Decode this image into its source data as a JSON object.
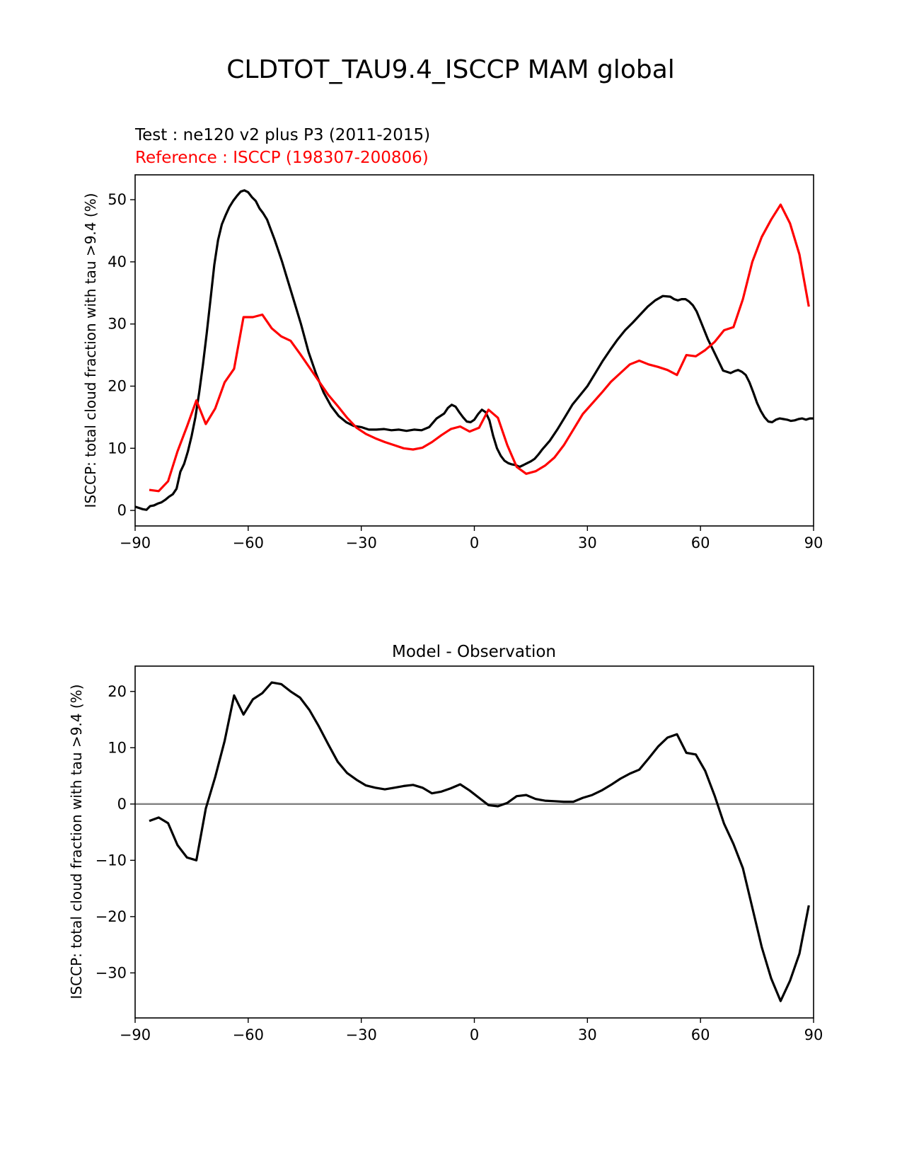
{
  "figure": {
    "suptitle": "CLDTOT_TAU9.4_ISCCP MAM global"
  },
  "colors": {
    "test": "#000000",
    "reference": "#ff0000",
    "zero_line": "#808080",
    "axes": "#000000"
  },
  "chart_data": [
    {
      "type": "line",
      "test_label": "Test : ne120 v2 plus P3 (2011-2015)",
      "reference_label": "Reference : ISCCP (198307-200806)",
      "xlabel": "",
      "ylabel": "ISCCP: total cloud fraction with tau >9.4 (%)",
      "xlim": [
        -90,
        90
      ],
      "ylim": [
        -2.5,
        54
      ],
      "xticks": [
        -90,
        -60,
        -30,
        0,
        30,
        60,
        90
      ],
      "xtick_labels": [
        "−90",
        "−60",
        "−30",
        "0",
        "30",
        "60",
        "90"
      ],
      "yticks": [
        0,
        10,
        20,
        30,
        40,
        50
      ],
      "ytick_labels": [
        "0",
        "10",
        "20",
        "30",
        "40",
        "50"
      ],
      "series": [
        {
          "name": "Test : ne120 v2 plus P3 (2011-2015)",
          "color": "#000000",
          "x": [
            -90,
            -89,
            -88,
            -87,
            -86,
            -85,
            -84,
            -83,
            -82,
            -81,
            -80,
            -79,
            -78,
            -77,
            -76,
            -75,
            -74,
            -73,
            -72,
            -71,
            -70,
            -69,
            -68,
            -67,
            -66,
            -65,
            -64,
            -63,
            -62,
            -61,
            -60,
            -59,
            -58,
            -57,
            -56,
            -55,
            -54,
            -53,
            -52,
            -51,
            -50,
            -48,
            -46,
            -44,
            -42,
            -40,
            -38,
            -36,
            -34,
            -32,
            -30,
            -28,
            -26,
            -24,
            -22,
            -20,
            -18,
            -16,
            -14,
            -12,
            -10,
            -8,
            -7,
            -6,
            -5,
            -4,
            -3,
            -2,
            -1,
            0,
            1,
            2,
            3,
            4,
            5,
            6,
            7,
            8,
            9,
            10,
            11,
            12,
            13,
            14,
            15,
            16,
            17,
            18,
            19,
            20,
            22,
            24,
            26,
            28,
            30,
            32,
            34,
            36,
            38,
            40,
            42,
            44,
            46,
            48,
            50,
            52,
            53,
            54,
            55,
            56,
            57,
            58,
            59,
            60,
            62,
            64,
            66,
            68,
            69,
            70,
            71,
            72,
            73,
            74,
            75,
            76,
            77,
            78,
            79,
            80,
            81,
            82,
            83,
            84,
            85,
            86,
            87,
            88,
            89,
            90
          ],
          "y": [
            0.6,
            0.4,
            0.2,
            0.1,
            0.7,
            0.8,
            1.1,
            1.3,
            1.7,
            2.2,
            2.6,
            3.5,
            6.2,
            7.5,
            9.5,
            12.0,
            15.0,
            19.0,
            23.5,
            28.5,
            34.0,
            39.5,
            43.5,
            46.0,
            47.5,
            48.8,
            49.8,
            50.6,
            51.3,
            51.5,
            51.2,
            50.4,
            49.8,
            48.6,
            47.8,
            46.8,
            45.2,
            43.6,
            41.8,
            40.0,
            38.0,
            34.0,
            30.0,
            25.5,
            22.0,
            19.0,
            16.8,
            15.2,
            14.2,
            13.6,
            13.4,
            13.0,
            13.0,
            13.1,
            12.9,
            13.0,
            12.8,
            13.0,
            12.9,
            13.4,
            14.8,
            15.6,
            16.5,
            17.0,
            16.7,
            15.8,
            15.0,
            14.3,
            14.2,
            14.6,
            15.5,
            16.2,
            15.8,
            14.5,
            12.0,
            10.0,
            8.8,
            8.0,
            7.6,
            7.4,
            7.3,
            7.0,
            7.3,
            7.6,
            7.9,
            8.3,
            9.0,
            9.8,
            10.5,
            11.2,
            13.0,
            15.0,
            17.0,
            18.5,
            20.0,
            22.0,
            24.0,
            25.8,
            27.5,
            29.0,
            30.2,
            31.5,
            32.8,
            33.8,
            34.5,
            34.4,
            34.0,
            33.8,
            34.0,
            34.0,
            33.6,
            33.0,
            32.0,
            30.5,
            27.5,
            25.0,
            22.5,
            22.1,
            22.4,
            22.6,
            22.3,
            21.8,
            20.6,
            19.0,
            17.3,
            16.0,
            15.0,
            14.3,
            14.2,
            14.6,
            14.8,
            14.7,
            14.6,
            14.4,
            14.5,
            14.7,
            14.8,
            14.6,
            14.8,
            14.8
          ]
        },
        {
          "name": "Reference : ISCCP (198307-200806)",
          "color": "#ff0000",
          "x": [
            -86.25,
            -83.75,
            -81.25,
            -78.75,
            -76.25,
            -73.75,
            -71.25,
            -68.75,
            -66.25,
            -63.75,
            -61.25,
            -58.75,
            -56.25,
            -53.75,
            -51.25,
            -48.75,
            -46.25,
            -43.75,
            -41.25,
            -38.75,
            -36.25,
            -33.75,
            -31.25,
            -28.75,
            -26.25,
            -23.75,
            -21.25,
            -18.75,
            -16.25,
            -13.75,
            -11.25,
            -8.75,
            -6.25,
            -3.75,
            -1.25,
            1.25,
            3.75,
            6.25,
            8.75,
            11.25,
            13.75,
            16.25,
            18.75,
            21.25,
            23.75,
            26.25,
            28.75,
            31.25,
            33.75,
            36.25,
            38.75,
            41.25,
            43.75,
            46.25,
            48.75,
            51.25,
            53.75,
            56.25,
            58.75,
            61.25,
            63.75,
            66.25,
            68.75,
            71.25,
            73.75,
            76.25,
            78.75,
            81.25,
            83.75,
            86.25,
            88.75
          ],
          "y": [
            3.3,
            3.1,
            4.7,
            9.5,
            13.5,
            17.7,
            13.9,
            16.4,
            20.6,
            22.8,
            31.1,
            31.1,
            31.5,
            29.3,
            28.0,
            27.3,
            25.2,
            23.0,
            20.8,
            18.6,
            16.8,
            14.9,
            13.3,
            12.3,
            11.6,
            11.0,
            10.5,
            10.0,
            9.8,
            10.1,
            11.0,
            12.1,
            13.1,
            13.5,
            12.7,
            13.3,
            16.2,
            14.9,
            10.5,
            7.0,
            5.9,
            6.3,
            7.2,
            8.5,
            10.5,
            13.0,
            15.5,
            17.2,
            18.9,
            20.7,
            22.1,
            23.5,
            24.1,
            23.5,
            23.1,
            22.6,
            21.8,
            25.0,
            24.8,
            25.8,
            27.1,
            29.0,
            29.5,
            34.0,
            40.0,
            44.0,
            46.8,
            49.2,
            46.2,
            41.2,
            32.8
          ]
        }
      ]
    },
    {
      "type": "line",
      "title": "Model - Observation",
      "xlabel": "",
      "ylabel": "ISCCP: total cloud fraction with tau >9.4 (%)",
      "xlim": [
        -90,
        90
      ],
      "ylim": [
        -38,
        24.5
      ],
      "xticks": [
        -90,
        -60,
        -30,
        0,
        30,
        60,
        90
      ],
      "xtick_labels": [
        "−90",
        "−60",
        "−30",
        "0",
        "30",
        "60",
        "90"
      ],
      "yticks": [
        -30,
        -20,
        -10,
        0,
        10,
        20
      ],
      "ytick_labels": [
        "−30",
        "−20",
        "−10",
        "0",
        "10",
        "20"
      ],
      "zero_line": true,
      "series": [
        {
          "color": "#000000",
          "x": [
            -86.25,
            -83.75,
            -81.25,
            -78.75,
            -76.25,
            -73.75,
            -71.25,
            -68.75,
            -66.25,
            -63.75,
            -61.25,
            -58.75,
            -56.25,
            -53.75,
            -51.25,
            -48.75,
            -46.25,
            -43.75,
            -41.25,
            -38.75,
            -36.25,
            -33.75,
            -31.25,
            -28.75,
            -26.25,
            -23.75,
            -21.25,
            -18.75,
            -16.25,
            -13.75,
            -11.25,
            -8.75,
            -6.25,
            -3.75,
            -1.25,
            1.25,
            3.75,
            6.25,
            8.75,
            11.25,
            13.75,
            16.25,
            18.75,
            21.25,
            23.75,
            26.25,
            28.75,
            31.25,
            33.75,
            36.25,
            38.75,
            41.25,
            43.75,
            46.25,
            48.75,
            51.25,
            53.75,
            56.25,
            58.75,
            61.25,
            63.75,
            66.25,
            68.75,
            71.25,
            73.75,
            76.25,
            78.75,
            81.25,
            83.75,
            86.25,
            88.75
          ],
          "y": [
            -3.0,
            -2.4,
            -3.4,
            -7.3,
            -9.5,
            -10.0,
            -0.8,
            4.8,
            11.2,
            19.3,
            15.9,
            18.6,
            19.7,
            21.6,
            21.3,
            20.0,
            18.9,
            16.7,
            13.8,
            10.6,
            7.5,
            5.5,
            4.3,
            3.3,
            2.9,
            2.6,
            2.9,
            3.2,
            3.4,
            2.9,
            1.9,
            2.2,
            2.8,
            3.5,
            2.4,
            1.1,
            -0.2,
            -0.4,
            0.2,
            1.4,
            1.6,
            0.9,
            0.6,
            0.5,
            0.4,
            0.4,
            1.1,
            1.6,
            2.4,
            3.4,
            4.5,
            5.4,
            6.1,
            8.1,
            10.2,
            11.8,
            12.4,
            9.1,
            8.8,
            5.9,
            1.5,
            -3.5,
            -7.1,
            -11.4,
            -18.4,
            -25.4,
            -31.0,
            -35.0,
            -31.4,
            -26.6,
            -18.0
          ]
        }
      ]
    }
  ]
}
